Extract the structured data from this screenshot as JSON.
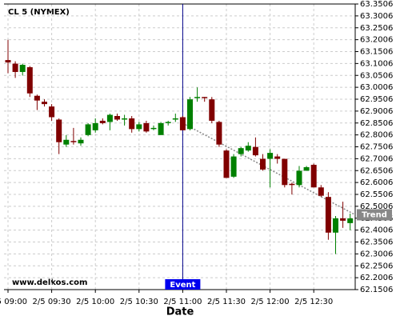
{
  "chart_data": {
    "type": "candlestick",
    "title": "CL 5 (NYMEX)",
    "x_label": "Date",
    "watermark": "www.delkos.com",
    "up_color": "#008000",
    "down_color": "#800000",
    "grid": true,
    "categories": [
      "2/5 09:00",
      null,
      null,
      null,
      null,
      null,
      "2/5 09:30",
      null,
      null,
      null,
      null,
      null,
      "2/5 10:00",
      null,
      null,
      null,
      null,
      null,
      "2/5 10:30",
      null,
      null,
      null,
      null,
      null,
      "2/5 11:00",
      null,
      null,
      null,
      null,
      null,
      "2/5 11:30",
      null,
      null,
      null,
      null,
      null,
      "2/5 12:00",
      null,
      null,
      null,
      null,
      null,
      "2/5 12:30",
      null,
      null,
      null,
      null,
      null
    ],
    "open": [
      63.115,
      63.1,
      63.065,
      63.085,
      62.965,
      62.94,
      62.92,
      62.865,
      62.76,
      62.775,
      62.765,
      62.8,
      62.82,
      62.86,
      62.855,
      62.88,
      62.865,
      62.87,
      62.825,
      62.85,
      62.825,
      62.8,
      62.85,
      62.865,
      62.875,
      62.825,
      62.955,
      62.96,
      62.95,
      62.855,
      62.735,
      62.625,
      62.72,
      62.735,
      62.75,
      62.7,
      62.7,
      62.71,
      62.7,
      62.595,
      62.59,
      62.65,
      62.675,
      62.58,
      62.54,
      62.39,
      62.45,
      62.43
    ],
    "high": [
      63.2,
      63.11,
      63.1,
      63.09,
      62.97,
      62.95,
      62.93,
      62.87,
      62.8,
      62.83,
      62.79,
      62.85,
      62.87,
      62.87,
      62.89,
      62.89,
      62.885,
      62.88,
      62.855,
      62.86,
      62.84,
      62.855,
      62.86,
      62.89,
      62.88,
      62.96,
      63.0,
      62.96,
      62.96,
      62.86,
      62.74,
      62.72,
      62.75,
      62.77,
      62.79,
      62.72,
      62.74,
      62.72,
      62.7,
      62.6,
      62.67,
      62.67,
      62.68,
      62.59,
      62.56,
      62.46,
      62.52,
      62.47
    ],
    "low": [
      63.06,
      63.04,
      63.05,
      62.96,
      62.905,
      62.92,
      62.86,
      62.72,
      62.75,
      62.76,
      62.755,
      62.795,
      62.81,
      62.845,
      62.82,
      62.86,
      62.84,
      62.81,
      62.815,
      62.81,
      62.82,
      62.8,
      62.84,
      62.855,
      62.82,
      62.82,
      62.94,
      62.94,
      62.85,
      62.75,
      62.62,
      62.62,
      62.71,
      62.73,
      62.71,
      62.65,
      62.58,
      62.68,
      62.58,
      62.55,
      62.58,
      62.65,
      62.58,
      62.54,
      62.36,
      62.3,
      62.41,
      62.4
    ],
    "close": [
      63.105,
      63.065,
      63.095,
      62.975,
      62.945,
      62.93,
      62.875,
      62.77,
      62.78,
      62.77,
      62.78,
      62.845,
      62.85,
      62.85,
      62.885,
      62.865,
      62.87,
      62.825,
      62.845,
      62.815,
      62.83,
      62.85,
      62.855,
      62.87,
      62.82,
      62.95,
      62.96,
      62.955,
      62.86,
      62.76,
      62.62,
      62.71,
      62.745,
      62.755,
      62.715,
      62.655,
      62.725,
      62.7,
      62.59,
      62.59,
      62.65,
      62.665,
      62.58,
      62.545,
      62.39,
      62.45,
      62.44,
      62.45
    ],
    "event": {
      "label": "Event",
      "at": "2/5 11:00"
    },
    "trend_line": {
      "label": "Trend",
      "color": "#888888",
      "values": [
        62.85,
        62.465
      ]
    },
    "ylim": [
      62.1506,
      63.3506
    ],
    "yticks": [
      62.1506,
      62.2006,
      62.2506,
      62.3006,
      62.3506,
      62.4006,
      62.4506,
      62.5006,
      62.5506,
      62.6006,
      62.6506,
      62.7006,
      62.7506,
      62.8006,
      62.8506,
      62.9006,
      62.9506,
      63.0006,
      63.0506,
      63.1006,
      63.1506,
      63.2006,
      63.2506,
      63.3006,
      63.3506
    ]
  }
}
